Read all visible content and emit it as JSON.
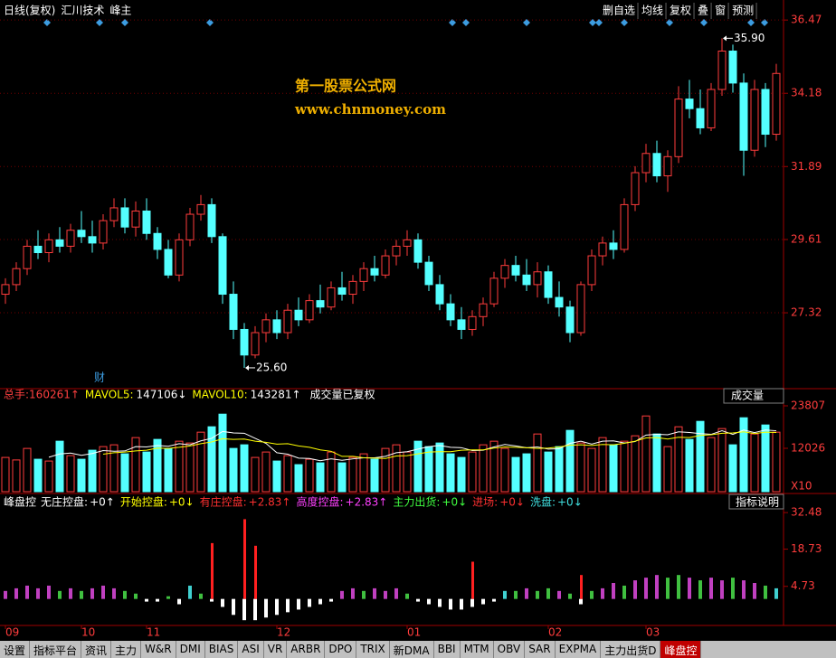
{
  "toolbar": {
    "period": "日线(复权)",
    "stock": "汇川技术",
    "indicator": "峰主",
    "buttons": [
      "删自选",
      "均线",
      "复权",
      "叠",
      "窗",
      "预测"
    ]
  },
  "watermark": {
    "name": "第一股票公式网",
    "url": "www.chnmoney.com"
  },
  "marker": "财",
  "tabs": {
    "items": [
      "设置",
      "指标平台",
      "资讯",
      "主力",
      "W&R",
      "DMI",
      "BIAS",
      "ASI",
      "VR",
      "ARBR",
      "DPO",
      "TRIX",
      "新DMA",
      "BBI",
      "MTM",
      "OBV",
      "SAR",
      "EXPMA",
      "主力出货D",
      "峰盘控"
    ],
    "active": 19
  },
  "chart_data": [
    {
      "type": "candlestick",
      "categories": [
        "09",
        null,
        null,
        null,
        null,
        null,
        null,
        "10",
        null,
        null,
        null,
        null,
        null,
        "11",
        null,
        null,
        null,
        null,
        null,
        null,
        null,
        null,
        null,
        null,
        null,
        "12",
        null,
        null,
        null,
        null,
        null,
        null,
        null,
        null,
        null,
        null,
        null,
        "01",
        null,
        null,
        null,
        null,
        null,
        null,
        null,
        null,
        null,
        null,
        null,
        null,
        "02",
        null,
        null,
        null,
        null,
        null,
        null,
        null,
        null,
        "03",
        null,
        null,
        null,
        null,
        null,
        null,
        null,
        null,
        null,
        null,
        null,
        null
      ],
      "open": [
        27.9,
        28.2,
        28.7,
        29.4,
        29.2,
        29.6,
        29.4,
        29.9,
        29.7,
        29.5,
        30.2,
        30.6,
        30.0,
        30.5,
        29.8,
        29.3,
        28.5,
        29.6,
        30.4,
        30.7,
        29.7,
        27.9,
        26.8,
        26.0,
        26.7,
        27.1,
        26.7,
        27.4,
        27.1,
        27.7,
        27.5,
        28.1,
        27.9,
        28.3,
        28.7,
        28.5,
        29.1,
        29.4,
        29.6,
        28.9,
        28.2,
        27.6,
        27.1,
        26.8,
        27.2,
        27.6,
        28.4,
        28.8,
        28.5,
        28.2,
        28.6,
        27.8,
        27.5,
        26.7,
        28.2,
        29.1,
        29.5,
        29.3,
        30.7,
        31.7,
        32.3,
        31.6,
        32.2,
        34.0,
        33.7,
        33.1,
        34.3,
        35.5,
        34.5,
        32.4,
        34.3,
        32.9
      ],
      "high": [
        28.4,
        28.9,
        29.6,
        29.9,
        29.8,
        30.0,
        30.1,
        30.5,
        30.2,
        30.4,
        30.9,
        30.9,
        30.8,
        30.9,
        30.0,
        29.6,
        29.8,
        30.6,
        31.0,
        30.9,
        29.8,
        28.3,
        27.0,
        26.9,
        27.3,
        27.4,
        27.6,
        27.8,
        27.9,
        28.2,
        28.3,
        28.6,
        28.5,
        28.9,
        29.1,
        29.3,
        29.6,
        29.9,
        29.8,
        29.1,
        28.5,
        27.9,
        27.5,
        27.4,
        27.8,
        28.6,
        29.0,
        29.1,
        29.0,
        28.9,
        28.8,
        28.3,
        27.7,
        28.3,
        29.3,
        29.7,
        29.9,
        30.9,
        31.9,
        32.6,
        32.7,
        32.4,
        34.4,
        34.6,
        34.3,
        34.5,
        35.9,
        35.7,
        34.8,
        34.6,
        34.5,
        35.1
      ],
      "low": [
        27.6,
        28.0,
        28.5,
        29.0,
        28.9,
        29.2,
        29.2,
        29.5,
        29.2,
        29.3,
        30.0,
        29.8,
        29.7,
        29.6,
        29.0,
        28.4,
        28.3,
        29.4,
        30.2,
        29.5,
        27.6,
        26.5,
        25.6,
        25.9,
        26.4,
        26.5,
        26.5,
        26.9,
        27.0,
        27.3,
        27.4,
        27.7,
        27.6,
        28.0,
        28.3,
        28.4,
        28.8,
        29.1,
        28.7,
        28.0,
        27.4,
        26.9,
        26.5,
        26.6,
        26.9,
        27.5,
        28.1,
        28.3,
        28.0,
        27.8,
        27.6,
        27.2,
        26.4,
        26.6,
        28.0,
        28.8,
        29.0,
        29.2,
        30.5,
        31.4,
        31.4,
        31.1,
        32.0,
        33.4,
        32.9,
        33.0,
        34.1,
        34.2,
        31.6,
        32.2,
        32.5,
        32.7
      ],
      "close": [
        28.2,
        28.7,
        29.4,
        29.2,
        29.6,
        29.4,
        29.9,
        29.7,
        29.5,
        30.2,
        30.6,
        30.0,
        30.5,
        29.8,
        29.3,
        28.5,
        29.6,
        30.4,
        30.7,
        29.7,
        27.9,
        26.8,
        26.0,
        26.7,
        27.1,
        26.7,
        27.4,
        27.1,
        27.7,
        27.5,
        28.1,
        27.9,
        28.3,
        28.7,
        28.5,
        29.1,
        29.4,
        29.6,
        28.9,
        28.2,
        27.6,
        27.1,
        26.8,
        27.2,
        27.6,
        28.4,
        28.8,
        28.5,
        28.2,
        28.6,
        27.8,
        27.5,
        26.7,
        28.2,
        29.1,
        29.5,
        29.3,
        30.7,
        31.7,
        32.3,
        31.6,
        32.2,
        34.0,
        33.7,
        33.1,
        34.3,
        35.5,
        34.5,
        32.4,
        34.3,
        32.9,
        34.8
      ],
      "up_color": "#ff3c3c",
      "down_color": "#54ffff",
      "ylim": [
        25.09,
        36.87
      ],
      "yticks": [
        27.32,
        29.61,
        31.89,
        34.18,
        36.47
      ],
      "grid": true,
      "annotations": [
        {
          "value": 35.9,
          "label": "35.90"
        },
        {
          "value": 25.6,
          "label": "25.60"
        }
      ]
    },
    {
      "type": "bar",
      "title": "成交量",
      "note": "成交量已复权",
      "unit": "X10",
      "header": [
        {
          "name": "总手:",
          "label": "160261↑",
          "color": "#ff4040"
        }
      ],
      "values": [
        9500,
        8800,
        12000,
        9000,
        8500,
        14000,
        10000,
        9000,
        11500,
        12500,
        13000,
        10500,
        15000,
        11000,
        14500,
        12000,
        14000,
        13500,
        16500,
        18000,
        21500,
        12000,
        13000,
        9500,
        11000,
        8500,
        10000,
        7500,
        9000,
        8000,
        11000,
        8000,
        9500,
        10500,
        9000,
        12000,
        13000,
        11000,
        14000,
        12500,
        13500,
        10500,
        9500,
        11000,
        13000,
        14000,
        12000,
        9500,
        10500,
        16000,
        11000,
        12500,
        17000,
        13500,
        12000,
        15000,
        13000,
        14000,
        15500,
        21000,
        16000,
        12500,
        18000,
        14500,
        19500,
        15000,
        17500,
        13000,
        20500,
        16000,
        18500,
        16500
      ],
      "series": [
        {
          "name": "MAVOL5:",
          "label": "147106↓",
          "color": "#ffffff",
          "values": [
            null,
            null,
            null,
            null,
            9560,
            10460,
            10700,
            10100,
            10600,
            11400,
            11200,
            11300,
            12500,
            12400,
            12800,
            12600,
            13300,
            13000,
            14100,
            14800,
            16700,
            16300,
            16200,
            14800,
            13400,
            10800,
            10400,
            9300,
            9200,
            8600,
            9100,
            8700,
            9100,
            9400,
            9400,
            9800,
            10800,
            11100,
            11800,
            12500,
            12800,
            12300,
            12200,
            11400,
            11500,
            12400,
            13100,
            12700,
            12200,
            12400,
            11800,
            11900,
            13400,
            14000,
            13200,
            14000,
            14100,
            13500,
            13900,
            15700,
            15900,
            15800,
            16600,
            16400,
            16100,
            15900,
            16900,
            15900,
            17100,
            16400,
            17100,
            16900
          ]
        },
        {
          "name": "MAVOL10:",
          "label": "143281↑",
          "color": "#ffff00",
          "values": [
            null,
            null,
            null,
            null,
            null,
            null,
            null,
            null,
            null,
            10400,
            10800,
            11000,
            11300,
            11500,
            12100,
            12000,
            12300,
            12700,
            13300,
            13800,
            14700,
            14500,
            14600,
            14000,
            13700,
            13200,
            13300,
            12700,
            12300,
            11600,
            11200,
            9800,
            9800,
            9400,
            9300,
            9200,
            9900,
            10000,
            10500,
            11000,
            11100,
            11100,
            11500,
            11600,
            11600,
            12100,
            12400,
            12300,
            12200,
            12000,
            12100,
            12400,
            12900,
            13000,
            12800,
            13100,
            13000,
            13400,
            14000,
            14900,
            15000,
            14600,
            15100,
            15000,
            15600,
            15800,
            16200,
            16300,
            16600,
            16100,
            16500,
            16400
          ]
        }
      ],
      "ylim": [
        0,
        24810
      ],
      "yticks": [
        12026,
        23807
      ]
    },
    {
      "type": "bar",
      "title": "峰盘控",
      "help": "指标说明",
      "header": [
        {
          "name": "无庄控盘:",
          "label": "+0↑",
          "color": "#ffffff"
        },
        {
          "name": "开始控盘:",
          "label": "+0↓",
          "color": "#ffff00"
        },
        {
          "name": "有庄控盘:",
          "label": "+2.83↑",
          "color": "#ff3030"
        },
        {
          "name": "高度控盘:",
          "label": "+2.83↑",
          "color": "#ff40ff"
        },
        {
          "name": "主力出货:",
          "label": "+0↓",
          "color": "#40ff40"
        },
        {
          "name": "进场:",
          "label": "+0↓",
          "color": "#ff3030"
        },
        {
          "name": "洗盘:",
          "label": "+0↓",
          "color": "#40e0e0"
        }
      ],
      "values": [
        3,
        4,
        5,
        4,
        5,
        3,
        4,
        3,
        4,
        5,
        4,
        3,
        2,
        -1,
        -1,
        1,
        -2,
        5,
        2,
        -1,
        -3,
        -6,
        -8,
        -8,
        -7,
        -6,
        -5,
        -4,
        -3,
        -2,
        -1,
        3,
        4,
        3,
        4,
        3,
        4,
        2,
        -1,
        -2,
        -3,
        -4,
        -4,
        -3,
        -2,
        -1,
        3,
        3,
        4,
        3,
        4,
        3,
        2,
        -2,
        3,
        4,
        6,
        5,
        7,
        8,
        9,
        8,
        9,
        8,
        7,
        8,
        7,
        8,
        7,
        6,
        5,
        4
      ],
      "colors": [
        "#c040c0",
        "#c040c0",
        "#c040c0",
        "#c040c0",
        "#c040c0",
        "#40c040",
        "#c040c0",
        "#40c040",
        "#c040c0",
        "#c040c0",
        "#c040c0",
        "#40c040",
        "#40c040",
        "#ffffff",
        "#ffffff",
        "#40c040",
        "#ffffff",
        "#40d0d0",
        "#40c040",
        "#ffffff",
        "#ffffff",
        "#ffffff",
        "#ffffff",
        "#ffffff",
        "#ffffff",
        "#ffffff",
        "#ffffff",
        "#ffffff",
        "#ffffff",
        "#ffffff",
        "#ffffff",
        "#c040c0",
        "#c040c0",
        "#40c040",
        "#c040c0",
        "#c040c0",
        "#c040c0",
        "#40c040",
        "#ffffff",
        "#ffffff",
        "#ffffff",
        "#ffffff",
        "#ffffff",
        "#ffffff",
        "#ffffff",
        "#ffffff",
        "#40d0d0",
        "#40c040",
        "#c040c0",
        "#40c040",
        "#40c040",
        "#c040c0",
        "#40c040",
        "#ffffff",
        "#40c040",
        "#c040c0",
        "#c040c0",
        "#40c040",
        "#c040c0",
        "#c040c0",
        "#c040c0",
        "#40c040",
        "#40c040",
        "#c040c0",
        "#40c040",
        "#c040c0",
        "#c040c0",
        "#40c040",
        "#c040c0",
        "#c040c0",
        "#40c040",
        "#40d0d0"
      ],
      "series": [
        {
          "color": "#ff2020",
          "values": [
            null,
            null,
            null,
            null,
            null,
            null,
            null,
            null,
            null,
            null,
            null,
            null,
            null,
            null,
            null,
            null,
            null,
            null,
            null,
            21,
            null,
            null,
            30,
            20,
            null,
            null,
            null,
            null,
            null,
            null,
            null,
            null,
            null,
            null,
            null,
            null,
            null,
            null,
            null,
            null,
            null,
            null,
            null,
            14,
            null,
            null,
            null,
            null,
            null,
            null,
            null,
            null,
            null,
            9,
            null,
            null,
            null,
            null,
            null,
            null,
            null,
            null,
            null,
            null,
            null,
            null,
            null,
            null,
            null,
            null,
            null,
            null
          ]
        }
      ],
      "ylim": [
        -9.3,
        34.9
      ],
      "yticks": [
        4.73,
        18.73,
        32.48
      ]
    }
  ]
}
